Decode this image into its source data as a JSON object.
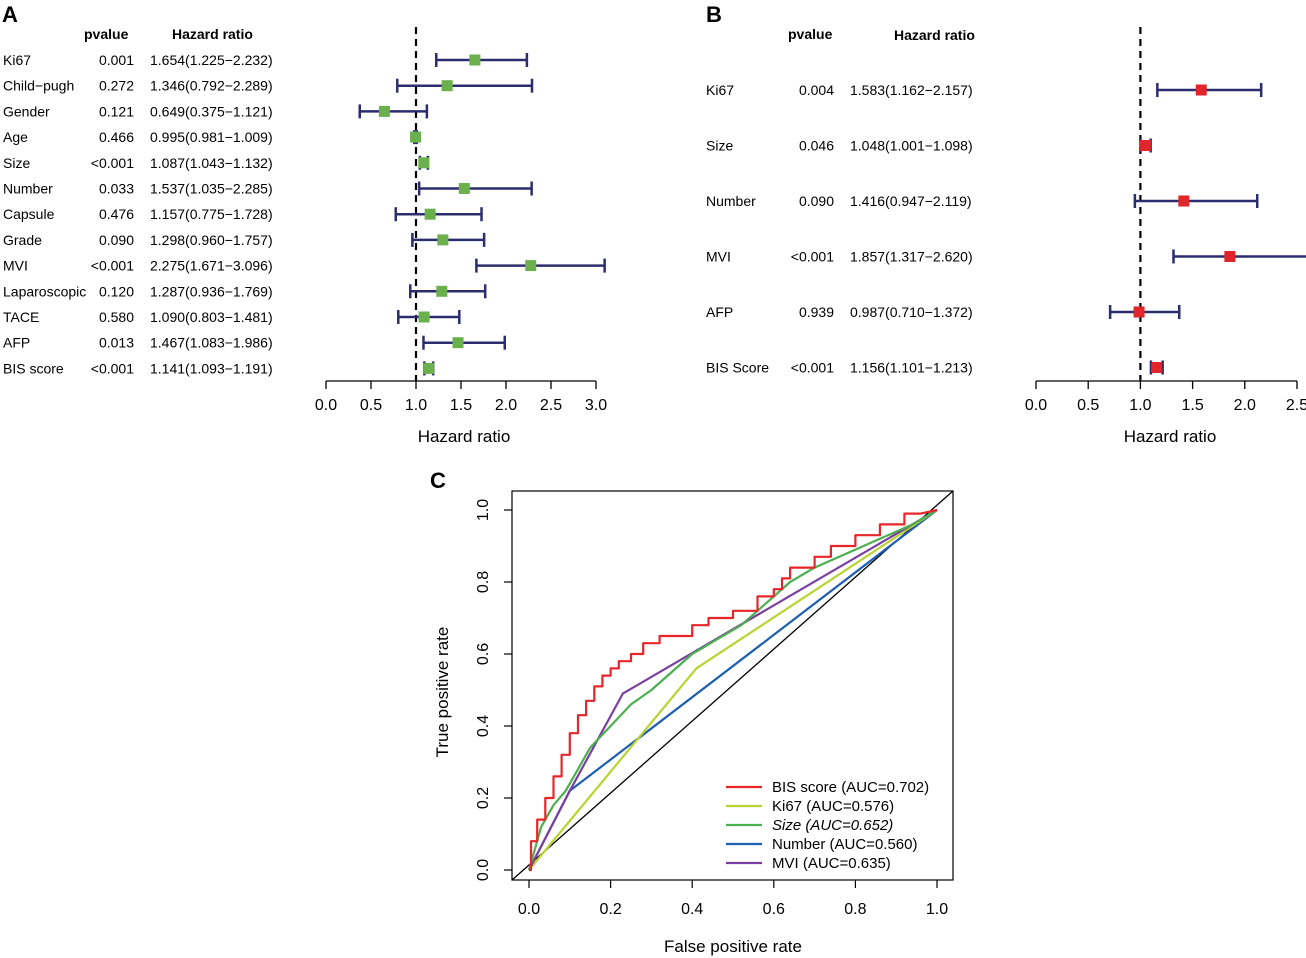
{
  "chart_data": [
    {
      "panel": "A",
      "type": "forest",
      "col_headers": {
        "pvalue": "pvalue",
        "hr": "Hazard ratio"
      },
      "xlabel": "Hazard ratio",
      "xlim": [
        0.0,
        3.0
      ],
      "xticks": [
        "0.0",
        "0.5",
        "1.0",
        "1.5",
        "2.0",
        "2.5",
        "3.0"
      ],
      "xtick_values": [
        0,
        0.5,
        1,
        1.5,
        2,
        2.5,
        3
      ],
      "reference": 1.0,
      "marker_color": "#6ab04c",
      "ci_color": "#2b2d6e",
      "rows": [
        {
          "label": "Ki67",
          "pvalue": "0.001",
          "hr_text": "1.654(1.225−2.232)",
          "hr": 1.654,
          "lo": 1.225,
          "hi": 2.232
        },
        {
          "label": "Child−pugh",
          "pvalue": "0.272",
          "hr_text": "1.346(0.792−2.289)",
          "hr": 1.346,
          "lo": 0.792,
          "hi": 2.289
        },
        {
          "label": "Gender",
          "pvalue": "0.121",
          "hr_text": "0.649(0.375−1.121)",
          "hr": 0.649,
          "lo": 0.375,
          "hi": 1.121
        },
        {
          "label": "Age",
          "pvalue": "0.466",
          "hr_text": "0.995(0.981−1.009)",
          "hr": 0.995,
          "lo": 0.981,
          "hi": 1.009
        },
        {
          "label": "Size",
          "pvalue": "<0.001",
          "hr_text": "1.087(1.043−1.132)",
          "hr": 1.087,
          "lo": 1.043,
          "hi": 1.132
        },
        {
          "label": "Number",
          "pvalue": "0.033",
          "hr_text": "1.537(1.035−2.285)",
          "hr": 1.537,
          "lo": 1.035,
          "hi": 2.285
        },
        {
          "label": "Capsule",
          "pvalue": "0.476",
          "hr_text": "1.157(0.775−1.728)",
          "hr": 1.157,
          "lo": 0.775,
          "hi": 1.728
        },
        {
          "label": "Grade",
          "pvalue": "0.090",
          "hr_text": "1.298(0.960−1.757)",
          "hr": 1.298,
          "lo": 0.96,
          "hi": 1.757
        },
        {
          "label": "MVI",
          "pvalue": "<0.001",
          "hr_text": "2.275(1.671−3.096)",
          "hr": 2.275,
          "lo": 1.671,
          "hi": 3.096
        },
        {
          "label": "Laparoscopic",
          "pvalue": "0.120",
          "hr_text": "1.287(0.936−1.769)",
          "hr": 1.287,
          "lo": 0.936,
          "hi": 1.769
        },
        {
          "label": "TACE",
          "pvalue": "0.580",
          "hr_text": "1.090(0.803−1.481)",
          "hr": 1.09,
          "lo": 0.803,
          "hi": 1.481
        },
        {
          "label": "AFP",
          "pvalue": "0.013",
          "hr_text": "1.467(1.083−1.986)",
          "hr": 1.467,
          "lo": 1.083,
          "hi": 1.986
        },
        {
          "label": "BIS score",
          "pvalue": "<0.001",
          "hr_text": "1.141(1.093−1.191)",
          "hr": 1.141,
          "lo": 1.093,
          "hi": 1.191
        }
      ]
    },
    {
      "panel": "B",
      "type": "forest",
      "col_headers": {
        "pvalue": "pvalue",
        "hr": "Hazard ratio"
      },
      "xlabel": "Hazard ratio",
      "xlim": [
        0.0,
        2.5
      ],
      "xticks": [
        "0.0",
        "0.5",
        "1.0",
        "1.5",
        "2.0",
        "2.5"
      ],
      "xtick_values": [
        0,
        0.5,
        1,
        1.5,
        2,
        2.5
      ],
      "reference": 1.0,
      "marker_color": "#e0262b",
      "ci_color": "#2b2d6e",
      "rows": [
        {
          "label": "Ki67",
          "pvalue": "0.004",
          "hr_text": "1.583(1.162−2.157)",
          "hr": 1.583,
          "lo": 1.162,
          "hi": 2.157
        },
        {
          "label": "Size",
          "pvalue": "0.046",
          "hr_text": "1.048(1.001−1.098)",
          "hr": 1.048,
          "lo": 1.001,
          "hi": 1.098
        },
        {
          "label": "Number",
          "pvalue": "0.090",
          "hr_text": "1.416(0.947−2.119)",
          "hr": 1.416,
          "lo": 0.947,
          "hi": 2.119
        },
        {
          "label": "MVI",
          "pvalue": "<0.001",
          "hr_text": "1.857(1.317−2.620)",
          "hr": 1.857,
          "lo": 1.317,
          "hi": 2.62
        },
        {
          "label": "AFP",
          "pvalue": "0.939",
          "hr_text": "0.987(0.710−1.372)",
          "hr": 0.987,
          "lo": 0.71,
          "hi": 1.372
        },
        {
          "label": "BIS Score",
          "pvalue": "<0.001",
          "hr_text": "1.156(1.101−1.213)",
          "hr": 1.156,
          "lo": 1.101,
          "hi": 1.213
        }
      ]
    },
    {
      "panel": "C",
      "type": "line",
      "xlabel": "False positive rate",
      "ylabel": "True positive rate",
      "xlim": [
        0.0,
        1.0
      ],
      "ylim": [
        0.0,
        1.0
      ],
      "xticks": [
        "0.0",
        "0.2",
        "0.4",
        "0.6",
        "0.8",
        "1.0"
      ],
      "yticks": [
        "0.0",
        "0.2",
        "0.4",
        "0.6",
        "0.8",
        "1.0"
      ],
      "tick_values": [
        0,
        0.2,
        0.4,
        0.6,
        0.8,
        1.0
      ],
      "legend_position": "bottom-right",
      "series": [
        {
          "name": "BIS score (AUC=0.702)",
          "color": "#e8262a",
          "x": [
            0,
            0.005,
            0.005,
            0.02,
            0.02,
            0.04,
            0.04,
            0.06,
            0.06,
            0.08,
            0.08,
            0.1,
            0.1,
            0.12,
            0.12,
            0.14,
            0.14,
            0.16,
            0.16,
            0.18,
            0.18,
            0.2,
            0.2,
            0.22,
            0.22,
            0.25,
            0.25,
            0.28,
            0.28,
            0.32,
            0.32,
            0.4,
            0.4,
            0.44,
            0.44,
            0.5,
            0.5,
            0.56,
            0.56,
            0.6,
            0.6,
            0.62,
            0.62,
            0.64,
            0.64,
            0.7,
            0.7,
            0.74,
            0.74,
            0.8,
            0.8,
            0.86,
            0.86,
            0.92,
            0.92,
            0.96,
            0.96,
            1.0
          ],
          "y": [
            0,
            0,
            0.08,
            0.08,
            0.14,
            0.14,
            0.2,
            0.2,
            0.26,
            0.26,
            0.32,
            0.32,
            0.38,
            0.38,
            0.43,
            0.43,
            0.47,
            0.47,
            0.51,
            0.51,
            0.54,
            0.54,
            0.56,
            0.56,
            0.58,
            0.58,
            0.6,
            0.6,
            0.63,
            0.63,
            0.65,
            0.65,
            0.68,
            0.68,
            0.7,
            0.7,
            0.72,
            0.72,
            0.76,
            0.76,
            0.78,
            0.78,
            0.81,
            0.81,
            0.84,
            0.84,
            0.87,
            0.87,
            0.9,
            0.9,
            0.93,
            0.93,
            0.96,
            0.96,
            0.99,
            0.99,
            0.99,
            1.0
          ]
        },
        {
          "name": "Ki67 (AUC=0.576)",
          "color": "#b8d430",
          "x": [
            0,
            0.41,
            1.0
          ],
          "y": [
            0,
            0.56,
            1.0
          ]
        },
        {
          "name": "Size (AUC=0.652)",
          "color": "#4caf50",
          "x": [
            0,
            0.03,
            0.06,
            0.09,
            0.12,
            0.15,
            0.2,
            0.25,
            0.3,
            0.35,
            0.4,
            0.46,
            0.52,
            0.56,
            0.6,
            0.64,
            0.7,
            0.78,
            0.86,
            0.94,
            1.0
          ],
          "y": [
            0,
            0.12,
            0.18,
            0.22,
            0.28,
            0.34,
            0.4,
            0.46,
            0.5,
            0.55,
            0.6,
            0.64,
            0.68,
            0.72,
            0.76,
            0.8,
            0.84,
            0.88,
            0.92,
            0.96,
            1.0
          ]
        },
        {
          "name": "Number (AUC=0.560)",
          "color": "#1f5fb0",
          "x": [
            0,
            0.1,
            1.0
          ],
          "y": [
            0,
            0.22,
            1.0
          ]
        },
        {
          "name": "MVI (AUC=0.635)",
          "color": "#7b3fa0",
          "x": [
            0,
            0.1,
            0.23,
            1.0
          ],
          "y": [
            0,
            0.22,
            0.49,
            1.0
          ]
        }
      ],
      "legend_italic": [
        "Size",
        "AUC=0.652"
      ]
    }
  ],
  "panel_labels": [
    "A",
    "B",
    "C"
  ]
}
